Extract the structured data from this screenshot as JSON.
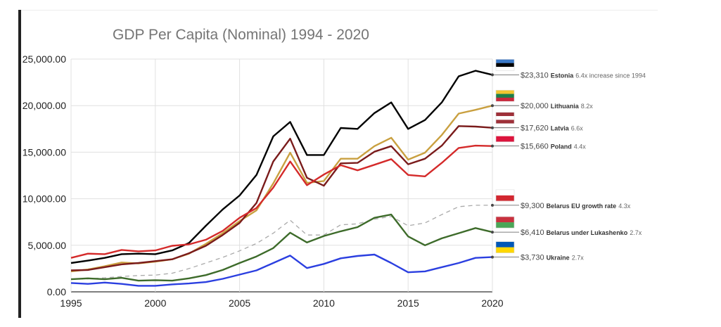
{
  "chart_data": {
    "type": "line",
    "title": "GDP Per Capita (Nominal) 1994 - 2020",
    "xlabel": "",
    "ylabel": "",
    "xlim": [
      1995,
      2020
    ],
    "ylim": [
      0,
      25000
    ],
    "x_ticks": [
      "1995",
      "2000",
      "2005",
      "2010",
      "2015",
      "2020"
    ],
    "y_ticks": [
      "0.00",
      "5,000.00",
      "10,000.00",
      "15,000.00",
      "20,000.00",
      "25,000.00"
    ],
    "x": [
      1995,
      1996,
      1997,
      1998,
      1999,
      2000,
      2001,
      2002,
      2003,
      2004,
      2005,
      2006,
      2007,
      2008,
      2009,
      2010,
      2011,
      2012,
      2013,
      2014,
      2015,
      2016,
      2017,
      2018,
      2019,
      2020
    ],
    "series": [
      {
        "name": "Estonia",
        "color": "#000000",
        "dashed": false,
        "values": [
          3100,
          3350,
          3650,
          4050,
          4100,
          4050,
          4450,
          5250,
          7100,
          8850,
          10350,
          12550,
          16700,
          18250,
          14700,
          14700,
          17600,
          17500,
          19200,
          20350,
          17500,
          18450,
          20350,
          23150,
          23750,
          23310
        ],
        "label": "$23,310",
        "name_label": "Estonia",
        "mult_label": "6.4x increase since 1994",
        "flag": [
          "#3b79c8",
          "#000000",
          "#ffffff"
        ]
      },
      {
        "name": "Lithuania",
        "color": "#c9a040",
        "dashed": false,
        "values": [
          2200,
          2400,
          2750,
          3150,
          3050,
          3250,
          3500,
          4100,
          5150,
          6300,
          7600,
          8750,
          11650,
          14950,
          11700,
          11900,
          14300,
          14300,
          15650,
          16550,
          14200,
          14950,
          16850,
          19150,
          19550,
          20000
        ],
        "label": "$20,000",
        "name_label": "Lithuania",
        "mult_label": "8.2x",
        "flag": [
          "#f2c530",
          "#1e7e4a",
          "#c8283c"
        ]
      },
      {
        "name": "Latvia",
        "color": "#7a1b1b",
        "dashed": false,
        "values": [
          2300,
          2350,
          2650,
          2950,
          3100,
          3300,
          3500,
          4150,
          4950,
          6100,
          7400,
          9550,
          14000,
          16450,
          12250,
          11400,
          13800,
          13850,
          15050,
          15650,
          13700,
          14300,
          15700,
          17800,
          17750,
          17620
        ],
        "label": "$17,620",
        "name_label": "Latvia",
        "mult_label": "6.6x",
        "flag": [
          "#9e3039",
          "#ffffff",
          "#9e3039"
        ]
      },
      {
        "name": "Poland",
        "color": "#d42a2a",
        "dashed": false,
        "values": [
          3650,
          4100,
          4050,
          4500,
          4350,
          4450,
          4950,
          5100,
          5600,
          6550,
          7950,
          9000,
          11200,
          14000,
          11450,
          12600,
          13600,
          13050,
          13650,
          14250,
          12550,
          12400,
          13850,
          15450,
          15700,
          15660
        ],
        "label": "$15,660",
        "name_label": "Poland",
        "mult_label": "4.4x",
        "flag": [
          "#ffffff",
          "#dc143c"
        ]
      },
      {
        "name": "Belarus EU growth rate",
        "color": "#aaaaaa",
        "dashed": true,
        "values": [
          1330,
          1400,
          1500,
          1650,
          1750,
          1800,
          2000,
          2500,
          3100,
          3700,
          4400,
          5200,
          6300,
          7700,
          6100,
          6100,
          7200,
          7300,
          7800,
          8100,
          7100,
          7400,
          8300,
          9150,
          9300,
          9300
        ],
        "label": "$9,300",
        "name_label": "Belarus EU growth rate",
        "mult_label": "4.3x",
        "flag": [
          "#ffffff",
          "#d22730"
        ]
      },
      {
        "name": "Belarus under Lukashenko",
        "color": "#3d6b2a",
        "dashed": false,
        "values": [
          1350,
          1450,
          1350,
          1500,
          1200,
          1250,
          1200,
          1450,
          1800,
          2350,
          3100,
          3800,
          4700,
          6350,
          5300,
          6000,
          6500,
          6950,
          7950,
          8300,
          5950,
          5000,
          5750,
          6300,
          6850,
          6410
        ],
        "label": "$6,410",
        "name_label": "Belarus under Lukashenko",
        "mult_label": "2.7x",
        "flag": [
          "#c8313e",
          "#4aa657"
        ]
      },
      {
        "name": "Ukraine",
        "color": "#2b3fe0",
        "dashed": false,
        "values": [
          950,
          850,
          1000,
          850,
          650,
          650,
          800,
          900,
          1050,
          1400,
          1850,
          2300,
          3100,
          3900,
          2550,
          3000,
          3600,
          3850,
          4000,
          3100,
          2100,
          2200,
          2650,
          3100,
          3650,
          3730
        ],
        "label": "$3,730",
        "name_label": "Ukraine",
        "mult_label": "2.7x",
        "flag": [
          "#0057b7",
          "#ffd700"
        ]
      }
    ]
  }
}
